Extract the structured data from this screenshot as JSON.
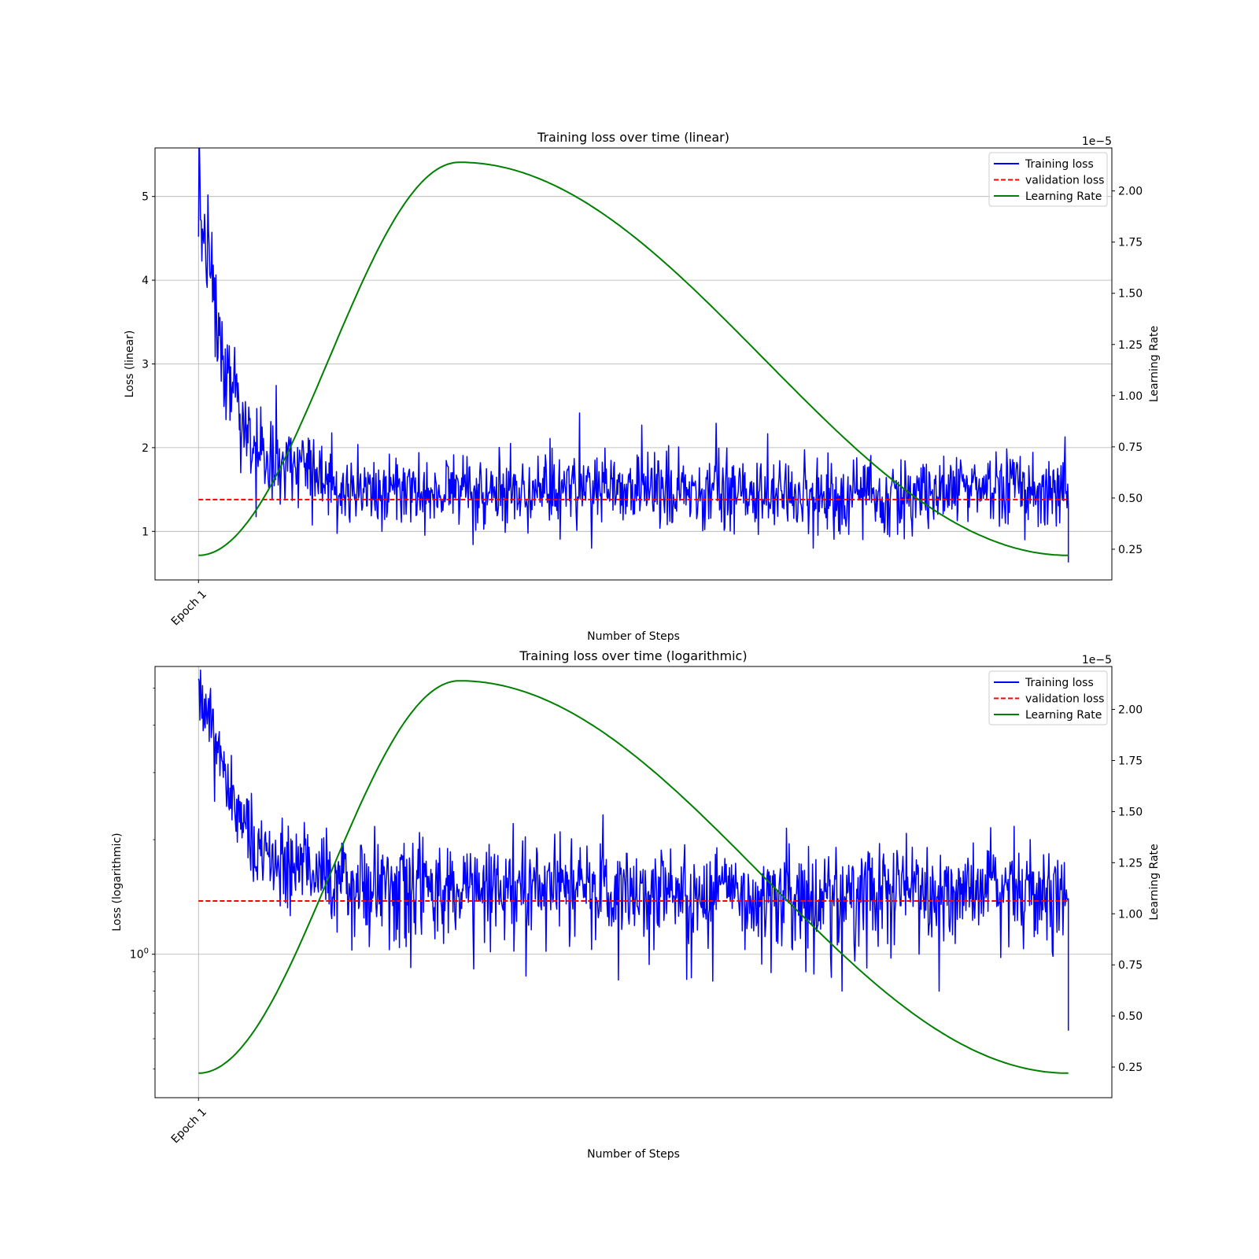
{
  "chart_data": [
    {
      "type": "line",
      "title": "Training loss over time (linear)",
      "xlabel": "Number of Steps",
      "ylabel": "Loss (linear)",
      "y2label": "Learning Rate",
      "y2_offset_text": "1e−5",
      "yscale": "linear",
      "ylim": [
        0.42,
        5.58
      ],
      "y2lim": [
        0.1,
        2.21
      ],
      "xlim": [
        -0.05,
        1.05
      ],
      "y_ticks": [
        1,
        2,
        3,
        4,
        5
      ],
      "y_tick_labels": [
        "1",
        "2",
        "3",
        "4",
        "5"
      ],
      "y2_ticks": [
        0.25,
        0.5,
        0.75,
        1.0,
        1.25,
        1.5,
        1.75,
        2.0
      ],
      "y2_tick_labels": [
        "0.25",
        "0.50",
        "0.75",
        "1.00",
        "1.25",
        "1.50",
        "1.75",
        "2.00"
      ],
      "x_ticks": [
        0
      ],
      "x_tick_labels": [
        "Epoch 1"
      ],
      "grid": true,
      "legend_position": "top-right",
      "legend": [
        "Training loss",
        "validation loss",
        "Learning Rate"
      ],
      "series": [
        {
          "name": "Training loss",
          "color": "#0000ff",
          "style": "solid",
          "axis": "left",
          "x": [
            0.0,
            0.01,
            0.02,
            0.03,
            0.045,
            0.06,
            0.08,
            0.1,
            0.12,
            0.14,
            0.16,
            0.2,
            0.3,
            0.4,
            0.5,
            0.6,
            0.7,
            0.8,
            0.9,
            1.0
          ],
          "y": [
            4.8,
            4.3,
            3.7,
            3.0,
            2.4,
            2.0,
            1.75,
            1.8,
            1.8,
            1.65,
            1.55,
            1.5,
            1.5,
            1.48,
            1.5,
            1.45,
            1.42,
            1.43,
            1.5,
            1.5
          ],
          "noise": [
            0.45,
            0.42,
            0.38,
            0.33,
            0.3,
            0.26,
            0.22,
            0.22,
            0.2,
            0.2,
            0.2,
            0.22,
            0.22,
            0.22,
            0.22,
            0.22,
            0.22,
            0.22,
            0.2,
            0.2
          ],
          "final_value": 0.63
        },
        {
          "name": "validation loss",
          "color": "#ff0000",
          "style": "dashed",
          "axis": "left",
          "x": [
            0.0,
            1.0
          ],
          "y": [
            1.38,
            1.38
          ]
        },
        {
          "name": "Learning Rate",
          "color": "#008000",
          "style": "solid",
          "axis": "right",
          "x": [
            0.0,
            0.3,
            1.0
          ],
          "y": [
            0.22,
            2.14,
            0.22
          ],
          "shape": "warmup-cosine"
        }
      ]
    },
    {
      "type": "line",
      "title": "Training loss over time (logarithmic)",
      "xlabel": "Number of Steps",
      "ylabel": "Loss (logarithmic)",
      "y2label": "Learning Rate",
      "y2_offset_text": "1e−5",
      "yscale": "log",
      "ylim": [
        0.42,
        5.7
      ],
      "y2lim": [
        0.1,
        2.21
      ],
      "xlim": [
        -0.05,
        1.05
      ],
      "y_ticks": [
        1
      ],
      "y_tick_labels": [
        "10^0"
      ],
      "y2_ticks": [
        0.25,
        0.5,
        0.75,
        1.0,
        1.25,
        1.5,
        1.75,
        2.0
      ],
      "y2_tick_labels": [
        "0.25",
        "0.50",
        "0.75",
        "1.00",
        "1.25",
        "1.50",
        "1.75",
        "2.00"
      ],
      "x_ticks": [
        0
      ],
      "x_tick_labels": [
        "Epoch 1"
      ],
      "grid": true,
      "legend_position": "top-right",
      "legend": [
        "Training loss",
        "validation loss",
        "Learning Rate"
      ],
      "series": [
        {
          "name": "Training loss",
          "color": "#0000ff",
          "style": "solid",
          "axis": "left",
          "x": [
            0.0,
            0.01,
            0.02,
            0.03,
            0.045,
            0.06,
            0.08,
            0.1,
            0.12,
            0.14,
            0.16,
            0.2,
            0.3,
            0.4,
            0.5,
            0.6,
            0.7,
            0.8,
            0.9,
            1.0
          ],
          "y": [
            4.8,
            4.3,
            3.7,
            3.0,
            2.4,
            2.0,
            1.75,
            1.8,
            1.8,
            1.65,
            1.55,
            1.5,
            1.5,
            1.48,
            1.5,
            1.45,
            1.42,
            1.43,
            1.5,
            1.5
          ],
          "noise": [
            0.45,
            0.42,
            0.38,
            0.33,
            0.3,
            0.26,
            0.22,
            0.22,
            0.2,
            0.2,
            0.2,
            0.22,
            0.22,
            0.22,
            0.22,
            0.22,
            0.22,
            0.22,
            0.2,
            0.2
          ],
          "final_value": 0.63
        },
        {
          "name": "validation loss",
          "color": "#ff0000",
          "style": "dashed",
          "axis": "left",
          "x": [
            0.0,
            1.0
          ],
          "y": [
            1.38,
            1.38
          ]
        },
        {
          "name": "Learning Rate",
          "color": "#008000",
          "style": "solid",
          "axis": "right",
          "x": [
            0.0,
            0.3,
            1.0
          ],
          "y": [
            0.22,
            2.14,
            0.22
          ],
          "shape": "warmup-cosine"
        }
      ]
    }
  ]
}
